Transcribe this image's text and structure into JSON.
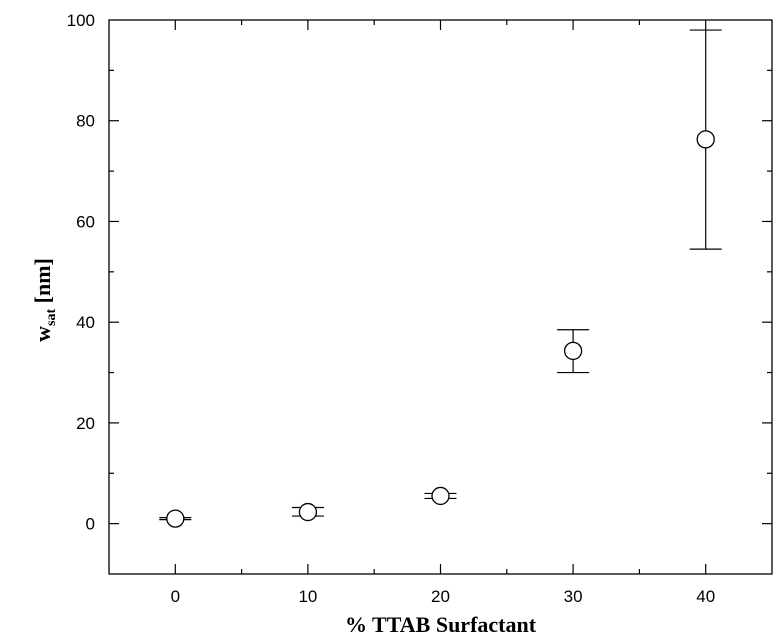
{
  "chart_data": {
    "type": "scatter",
    "xlabel": "% TTAB Surfactant",
    "ylabel_main": "w",
    "ylabel_sub": "sat",
    "ylabel_unit": " [nm]",
    "xlim": [
      -5,
      45
    ],
    "ylim": [
      -10,
      100
    ],
    "xticks": [
      0,
      10,
      20,
      30,
      40
    ],
    "yticks": [
      0,
      20,
      40,
      60,
      80,
      100
    ],
    "grid": false,
    "marker": "open-circle",
    "points": [
      {
        "x": 0,
        "y": 1.0,
        "err_low": 0.8,
        "err_high": 1.2
      },
      {
        "x": 10,
        "y": 2.3,
        "err_low": 1.5,
        "err_high": 3.2
      },
      {
        "x": 20,
        "y": 5.5,
        "err_low": 5.0,
        "err_high": 6.0
      },
      {
        "x": 30,
        "y": 34.3,
        "err_low": 30.0,
        "err_high": 38.5
      },
      {
        "x": 40,
        "y": 76.3,
        "err_low": 54.5,
        "err_high": 98.0
      }
    ]
  }
}
